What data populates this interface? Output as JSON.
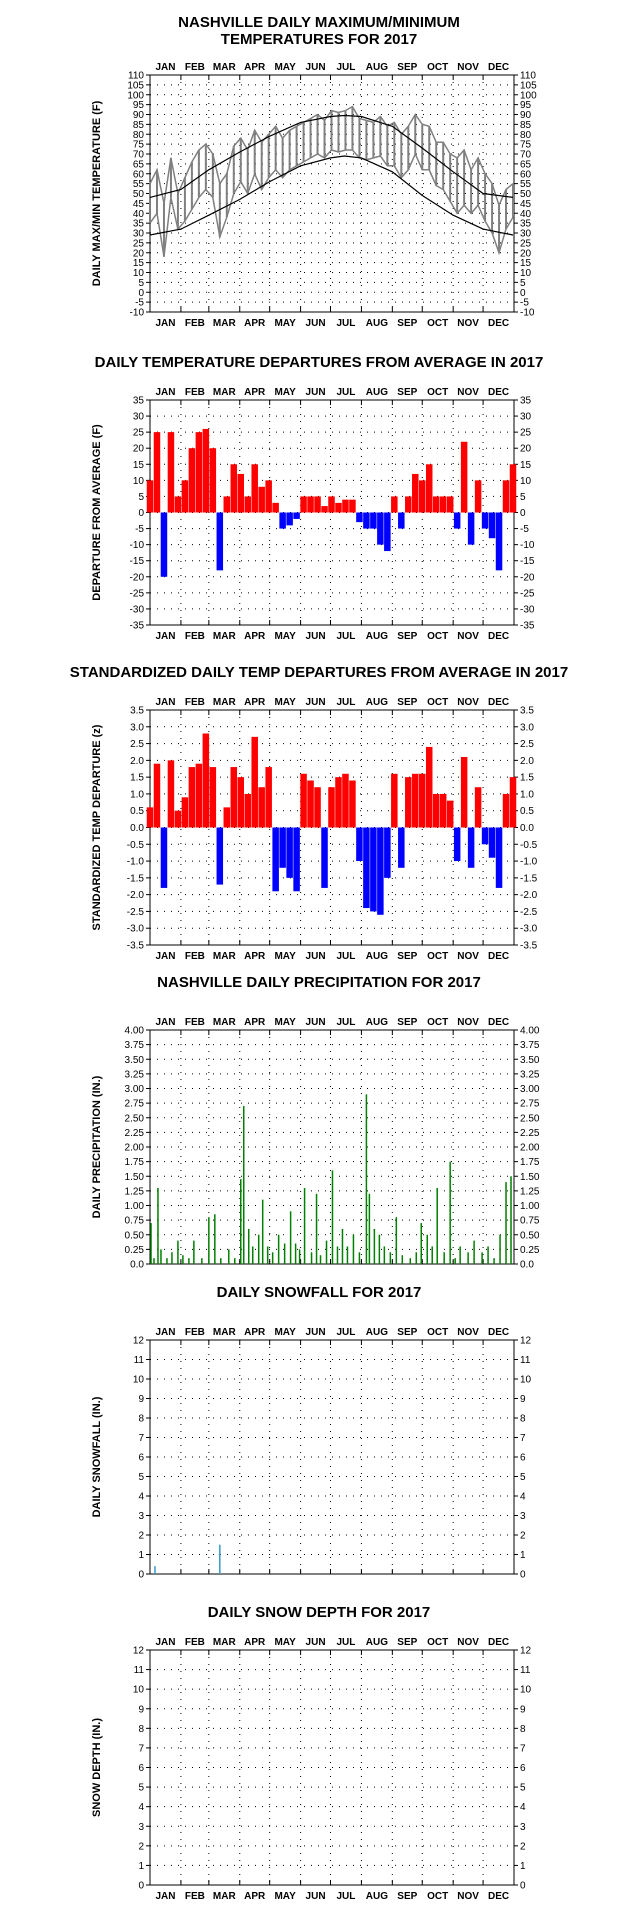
{
  "months": [
    "JAN",
    "FEB",
    "MAR",
    "APR",
    "MAY",
    "JUN",
    "JUL",
    "AUG",
    "SEP",
    "OCT",
    "NOV",
    "DEC"
  ],
  "colors": {
    "max_min": "#808080",
    "normals": "#000000",
    "positive": "#ff0000",
    "negative": "#0000ff",
    "precip": "#008000",
    "snow": "#3399cc"
  },
  "chart_data": [
    {
      "id": "temps",
      "type": "line",
      "title": [
        "NASHVILLE DAILY MAXIMUM/MINIMUM",
        "TEMPERATURES FOR 2017"
      ],
      "ylabel": "DAILY MAX/MIN TEMPERATURE (F)",
      "ylim": [
        -10,
        110
      ],
      "yticks": [
        "-10",
        "-5",
        "0",
        "5",
        "10",
        "15",
        "20",
        "25",
        "30",
        "35",
        "40",
        "45",
        "50",
        "55",
        "60",
        "65",
        "70",
        "75",
        "80",
        "85",
        "90",
        "95",
        "100",
        "105",
        "110"
      ],
      "month_labels_top": true,
      "month_labels_bottom": true,
      "grid": "dotted",
      "series": [
        {
          "role": "daily_max_min",
          "x_day": [
            1,
            8,
            15,
            22,
            29,
            36,
            43,
            50,
            57,
            64,
            71,
            78,
            85,
            92,
            99,
            106,
            113,
            120,
            127,
            134,
            141,
            148,
            155,
            162,
            169,
            176,
            183,
            190,
            197,
            204,
            211,
            218,
            225,
            232,
            239,
            246,
            253,
            260,
            267,
            274,
            281,
            288,
            295,
            302,
            309,
            316,
            323,
            330,
            337,
            344,
            351,
            358,
            365
          ],
          "max": [
            55,
            62,
            45,
            68,
            50,
            58,
            66,
            72,
            75,
            70,
            55,
            60,
            74,
            78,
            72,
            82,
            76,
            80,
            84,
            78,
            82,
            84,
            86,
            88,
            90,
            87,
            92,
            91,
            92,
            94,
            88,
            87,
            86,
            89,
            84,
            86,
            80,
            84,
            90,
            85,
            84,
            76,
            76,
            70,
            68,
            72,
            62,
            68,
            60,
            55,
            44,
            52,
            55
          ],
          "min": [
            35,
            40,
            18,
            48,
            32,
            36,
            42,
            48,
            52,
            48,
            28,
            38,
            50,
            56,
            50,
            60,
            52,
            58,
            62,
            58,
            62,
            64,
            66,
            68,
            70,
            68,
            72,
            71,
            72,
            72,
            68,
            67,
            68,
            69,
            64,
            64,
            58,
            62,
            70,
            62,
            62,
            54,
            52,
            46,
            40,
            44,
            40,
            44,
            36,
            30,
            20,
            32,
            38
          ]
        },
        {
          "role": "normal_max",
          "x_day": [
            1,
            32,
            60,
            91,
            121,
            152,
            182,
            196,
            213,
            244,
            274,
            305,
            335,
            365
          ],
          "values": [
            48,
            52,
            62,
            71,
            79,
            86,
            89,
            89.5,
            89,
            84,
            73,
            61,
            50,
            48
          ]
        },
        {
          "role": "normal_min",
          "x_day": [
            1,
            32,
            60,
            91,
            121,
            152,
            182,
            196,
            213,
            244,
            274,
            305,
            335,
            365
          ],
          "values": [
            29,
            32,
            39,
            47,
            56,
            64,
            68,
            69,
            68,
            61,
            49,
            39,
            32,
            29
          ]
        }
      ]
    },
    {
      "id": "departures",
      "type": "bar",
      "title": [
        "DAILY TEMPERATURE DEPARTURES FROM AVERAGE IN 2017"
      ],
      "ylabel": "DEPARTURE FROM AVERAGE (F)",
      "ylim": [
        -35,
        35
      ],
      "yticks": [
        "-35",
        "-30",
        "-25",
        "-20",
        "-15",
        "-10",
        "-5",
        "0",
        "5",
        "10",
        "15",
        "20",
        "25",
        "30",
        "35"
      ],
      "month_labels_top": true,
      "month_labels_bottom": true,
      "grid": "dotted",
      "x_day": [
        1,
        8,
        15,
        22,
        29,
        36,
        43,
        50,
        57,
        64,
        71,
        78,
        85,
        92,
        99,
        106,
        113,
        120,
        127,
        134,
        141,
        148,
        155,
        162,
        169,
        176,
        183,
        190,
        197,
        204,
        211,
        218,
        225,
        232,
        239,
        246,
        253,
        260,
        267,
        274,
        281,
        288,
        295,
        302,
        309,
        316,
        323,
        330,
        337,
        344,
        351,
        358,
        365
      ],
      "values": [
        10,
        25,
        -20,
        25,
        5,
        10,
        20,
        25,
        26,
        20,
        -18,
        5,
        15,
        12,
        5,
        15,
        8,
        10,
        3,
        -5,
        -4,
        -2,
        5,
        5,
        5,
        2,
        5,
        3,
        4,
        4,
        -3,
        -5,
        -5,
        -10,
        -12,
        5,
        -5,
        5,
        12,
        10,
        15,
        5,
        5,
        5,
        -5,
        22,
        -10,
        10,
        -5,
        -8,
        -18,
        10,
        15
      ]
    },
    {
      "id": "standardized",
      "type": "bar",
      "title": [
        "STANDARDIZED DAILY TEMP DEPARTURES FROM AVERAGE IN 2017"
      ],
      "ylabel": "STANDARDIZED TEMP DEPARTURE (z)",
      "ylim": [
        -3.5,
        3.5
      ],
      "yticks": [
        "-3.5",
        "-3.0",
        "-2.5",
        "-2.0",
        "-1.5",
        "-1.0",
        "-0.5",
        "0.0",
        "0.5",
        "1.0",
        "1.5",
        "2.0",
        "2.5",
        "3.0",
        "3.5"
      ],
      "month_labels_top": true,
      "month_labels_bottom": true,
      "grid": "dotted",
      "x_day": [
        1,
        8,
        15,
        22,
        29,
        36,
        43,
        50,
        57,
        64,
        71,
        78,
        85,
        92,
        99,
        106,
        113,
        120,
        127,
        134,
        141,
        148,
        155,
        162,
        169,
        176,
        183,
        190,
        197,
        204,
        211,
        218,
        225,
        232,
        239,
        246,
        253,
        260,
        267,
        274,
        281,
        288,
        295,
        302,
        309,
        316,
        323,
        330,
        337,
        344,
        351,
        358,
        365
      ],
      "values": [
        0.6,
        1.9,
        -1.8,
        2.0,
        0.5,
        0.9,
        1.8,
        1.9,
        2.8,
        1.8,
        -1.7,
        0.6,
        1.8,
        1.5,
        1.0,
        2.7,
        1.2,
        1.8,
        -1.9,
        -1.2,
        -1.5,
        -1.9,
        1.6,
        1.4,
        1.2,
        -1.8,
        1.2,
        1.5,
        1.6,
        1.4,
        -1.0,
        -2.4,
        -2.5,
        -2.6,
        -1.5,
        1.6,
        -1.2,
        1.5,
        1.6,
        1.6,
        2.4,
        1.0,
        1.0,
        0.8,
        -1.0,
        2.1,
        -1.2,
        1.2,
        -0.5,
        -0.9,
        -1.8,
        1.0,
        1.5
      ]
    },
    {
      "id": "precip",
      "type": "bar",
      "title": [
        "NASHVILLE DAILY PRECIPITATION FOR 2017"
      ],
      "ylabel": "DAILY PRECIPITATION (IN.)",
      "ylim": [
        0,
        4
      ],
      "yticks": [
        "0.0",
        "0.25",
        "0.50",
        "0.75",
        "1.00",
        "1.25",
        "1.50",
        "1.75",
        "2.00",
        "2.25",
        "2.50",
        "2.75",
        "3.00",
        "3.25",
        "3.50",
        "3.75",
        "4.00"
      ],
      "month_labels_top": true,
      "month_labels_bottom": false,
      "grid": "dotted",
      "x_day": [
        2,
        5,
        9,
        12,
        18,
        23,
        29,
        34,
        40,
        45,
        53,
        60,
        66,
        72,
        80,
        86,
        92,
        95,
        100,
        104,
        110,
        114,
        119,
        124,
        130,
        136,
        142,
        147,
        151,
        156,
        163,
        168,
        172,
        178,
        184,
        189,
        194,
        199,
        205,
        211,
        218,
        221,
        226,
        231,
        236,
        242,
        248,
        254,
        262,
        268,
        273,
        279,
        284,
        289,
        296,
        302,
        307,
        312,
        320,
        326,
        334,
        340,
        346,
        352,
        358,
        363
      ],
      "values": [
        0.7,
        0.1,
        1.3,
        0.25,
        0.1,
        0.2,
        0.4,
        0.15,
        0.1,
        0.4,
        0.1,
        0.8,
        0.85,
        0.1,
        0.25,
        0.1,
        1.45,
        2.7,
        0.6,
        0.3,
        0.5,
        1.1,
        0.3,
        0.2,
        0.5,
        0.35,
        0.9,
        0.35,
        0.25,
        1.3,
        0.2,
        1.2,
        0.15,
        0.4,
        1.6,
        0.3,
        0.6,
        0.3,
        0.5,
        0.2,
        2.9,
        1.2,
        0.6,
        0.5,
        0.3,
        0.2,
        0.8,
        0.15,
        0.1,
        0.2,
        0.7,
        0.5,
        0.3,
        1.3,
        0.2,
        1.75,
        0.1,
        0.3,
        0.2,
        0.4,
        0.2,
        0.3,
        0.1,
        0.5,
        1.4,
        1.5
      ]
    },
    {
      "id": "snowfall",
      "type": "bar",
      "title": [
        "DAILY SNOWFALL FOR 2017"
      ],
      "ylabel": "DAILY SNOWFALL (IN.)",
      "ylim": [
        0,
        12
      ],
      "yticks": [
        "0",
        "1",
        "2",
        "3",
        "4",
        "5",
        "6",
        "7",
        "8",
        "9",
        "10",
        "11",
        "12"
      ],
      "month_labels_top": true,
      "month_labels_bottom": false,
      "grid": "dotted",
      "x_day": [
        6,
        71
      ],
      "values": [
        0.4,
        1.5
      ]
    },
    {
      "id": "snowdepth",
      "type": "bar",
      "title": [
        "DAILY SNOW DEPTH FOR 2017"
      ],
      "ylabel": "SNOW DEPTH (IN.)",
      "ylim": [
        0,
        12
      ],
      "yticks": [
        "0",
        "1",
        "2",
        "3",
        "4",
        "5",
        "6",
        "7",
        "8",
        "9",
        "10",
        "11",
        "12"
      ],
      "month_labels_top": true,
      "month_labels_bottom": true,
      "grid": "dotted",
      "x_day": [],
      "values": []
    }
  ]
}
